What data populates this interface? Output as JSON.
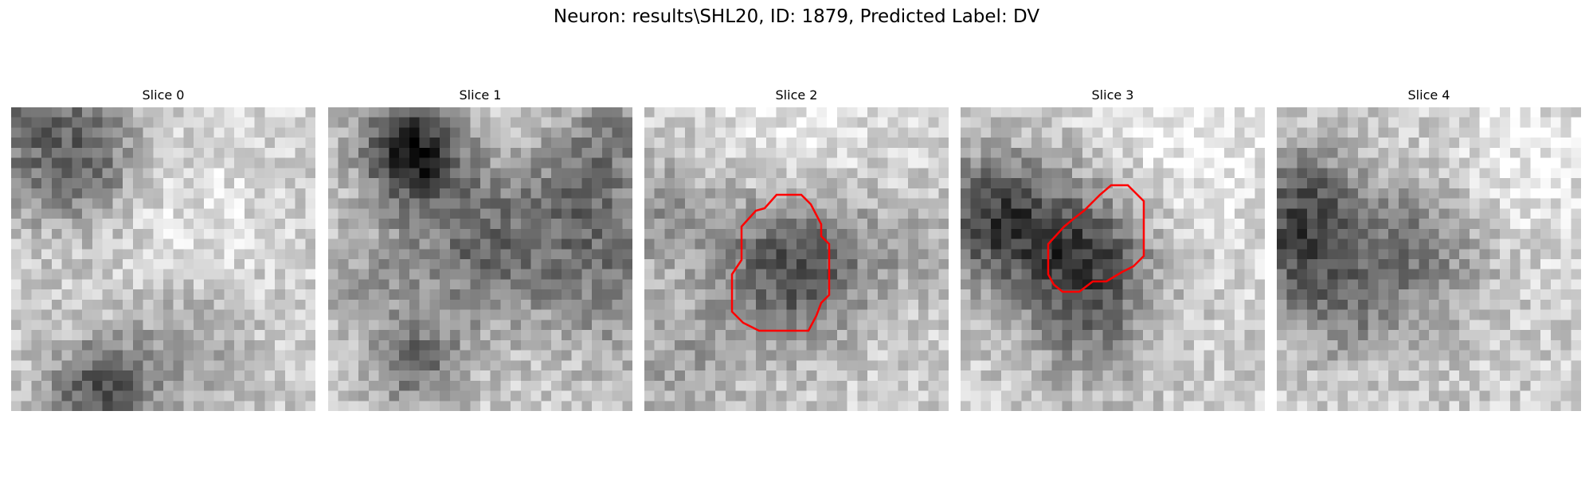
{
  "figure": {
    "title": "Neuron: results\\SHL20, ID: 1879, Predicted Label: DV"
  },
  "slices": [
    {
      "title": "Slice 0",
      "has_contour": false
    },
    {
      "title": "Slice 1",
      "has_contour": false
    },
    {
      "title": "Slice 2",
      "has_contour": true
    },
    {
      "title": "Slice 3",
      "has_contour": true
    },
    {
      "title": "Slice 4",
      "has_contour": false
    }
  ],
  "contour_color": "#ff0000",
  "colormap": "gray"
}
